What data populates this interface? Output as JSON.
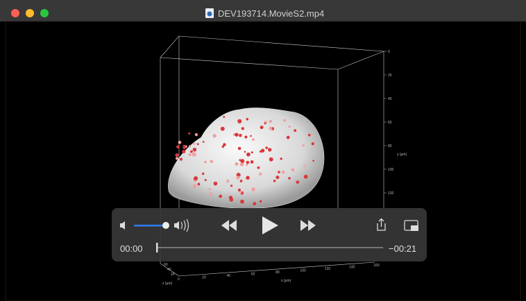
{
  "window": {
    "title": "DEV193714.MovieS2.mp4"
  },
  "video": {
    "y_axis": {
      "label": "y (µm)",
      "ticks": [
        "0",
        "20",
        "40",
        "60",
        "80",
        "100",
        "120"
      ]
    },
    "x_axis": {
      "label": "x (µm)",
      "ticks": [
        "0",
        "20",
        "40",
        "60",
        "80",
        "100",
        "120",
        "140",
        "160"
      ]
    },
    "z_axis": {
      "label": "z (µm)",
      "ticks": [
        "60",
        "40",
        "20"
      ]
    }
  },
  "controls": {
    "elapsed": "00:00",
    "remaining": "−00:21"
  }
}
